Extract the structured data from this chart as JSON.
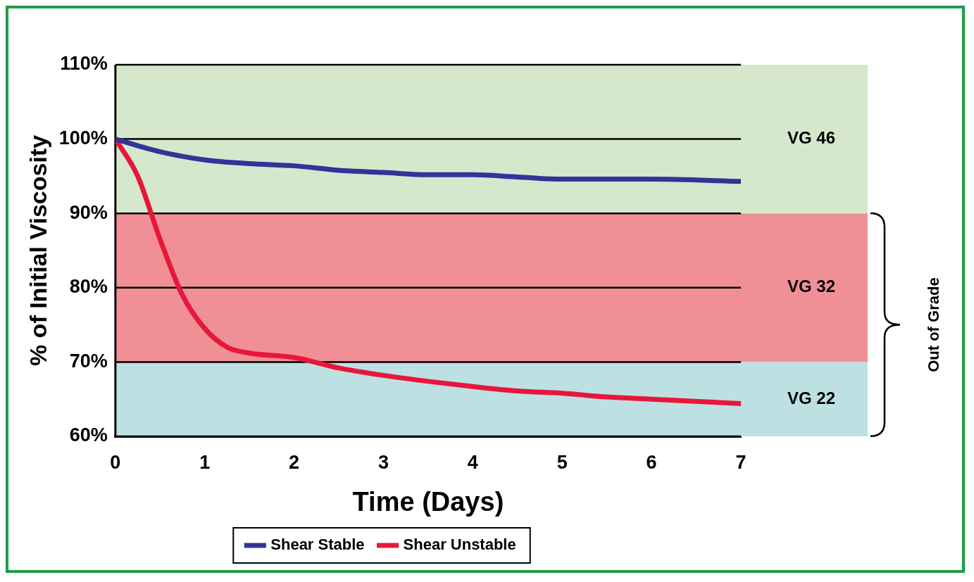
{
  "chart_data": {
    "type": "line",
    "xlabel": "Time (Days)",
    "ylabel": "% of Initial Viscosity",
    "xlim": [
      0,
      7
    ],
    "xticks": [
      0,
      1,
      2,
      3,
      4,
      5,
      6,
      7
    ],
    "ylim": [
      60,
      110
    ],
    "yticks": [
      {
        "value": 60,
        "label": "60%"
      },
      {
        "value": 70,
        "label": "70%"
      },
      {
        "value": 80,
        "label": "80%"
      },
      {
        "value": 90,
        "label": "90%"
      },
      {
        "value": 100,
        "label": "100%"
      },
      {
        "value": 110,
        "label": "110%"
      }
    ],
    "series": [
      {
        "name": "Shear Stable",
        "color": "#333399",
        "x": [
          0,
          0.5,
          1,
          1.5,
          2,
          2.5,
          3,
          3.5,
          4,
          4.5,
          5,
          6,
          7
        ],
        "values": [
          100,
          98.3,
          97.2,
          96.7,
          96.4,
          95.8,
          95.5,
          95.2,
          95.2,
          94.9,
          94.6,
          94.6,
          94.3
        ]
      },
      {
        "name": "Shear Unstable",
        "color": "#e8173a",
        "x": [
          0,
          0.25,
          0.5,
          0.75,
          1,
          1.25,
          1.5,
          2,
          2.5,
          3,
          3.5,
          4,
          4.5,
          5,
          5.5,
          6,
          7
        ],
        "values": [
          100,
          95,
          86.5,
          79,
          74.5,
          72,
          71.2,
          70.6,
          69.2,
          68.2,
          67.4,
          66.7,
          66.1,
          65.8,
          65.3,
          65,
          64.4
        ]
      }
    ],
    "bands": [
      {
        "axis": "y",
        "from": 90,
        "to": 110,
        "label": "VG 46",
        "color": "#d5e8cc"
      },
      {
        "axis": "y",
        "from": 70,
        "to": 90,
        "label": "VG 32",
        "color": "#f09096"
      },
      {
        "axis": "y",
        "from": 60,
        "to": 70,
        "label": "VG 22",
        "color": "#bde0e3"
      }
    ],
    "annotations": [
      "Out of Grade"
    ],
    "grid": "y",
    "legend": "bottom",
    "line_style": "solid",
    "marker": "none"
  }
}
